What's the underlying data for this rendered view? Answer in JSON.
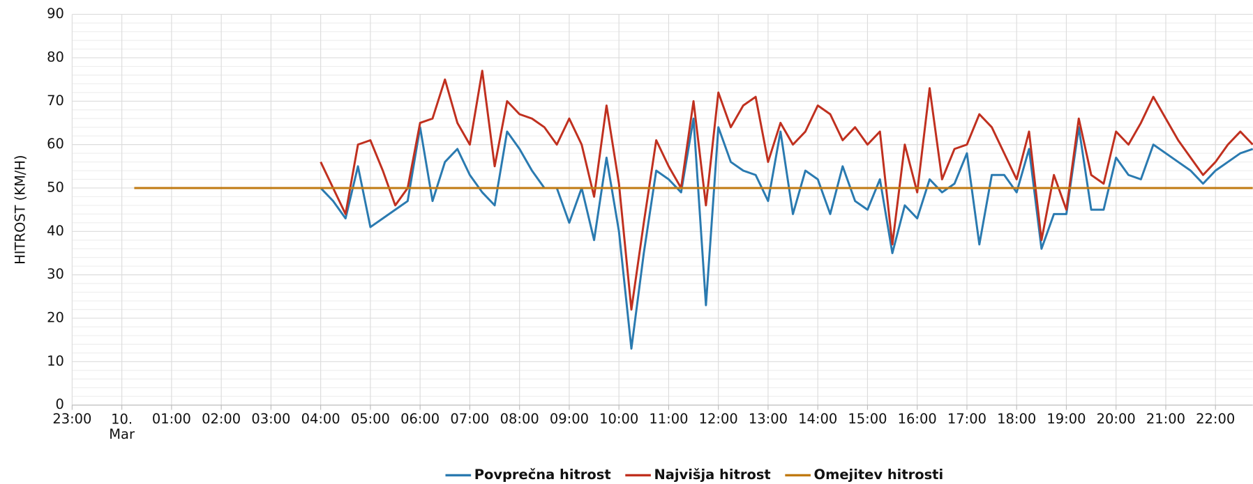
{
  "chart_data": {
    "type": "line",
    "y_label": "HITROST (KM/H)",
    "xlim": [
      -1,
      22.75
    ],
    "xticks": [
      {
        "value": -1,
        "label": "23:00"
      },
      {
        "value": 0,
        "label": "10.\nMar"
      },
      {
        "value": 1,
        "label": "01:00"
      },
      {
        "value": 2,
        "label": "02:00"
      },
      {
        "value": 3,
        "label": "03:00"
      },
      {
        "value": 4,
        "label": "04:00"
      },
      {
        "value": 5,
        "label": "05:00"
      },
      {
        "value": 6,
        "label": "06:00"
      },
      {
        "value": 7,
        "label": "07:00"
      },
      {
        "value": 8,
        "label": "08:00"
      },
      {
        "value": 9,
        "label": "09:00"
      },
      {
        "value": 10,
        "label": "10:00"
      },
      {
        "value": 11,
        "label": "11:00"
      },
      {
        "value": 12,
        "label": "12:00"
      },
      {
        "value": 13,
        "label": "13:00"
      },
      {
        "value": 14,
        "label": "14:00"
      },
      {
        "value": 15,
        "label": "15:00"
      },
      {
        "value": 16,
        "label": "16:00"
      },
      {
        "value": 17,
        "label": "17:00"
      },
      {
        "value": 18,
        "label": "18:00"
      },
      {
        "value": 19,
        "label": "19:00"
      },
      {
        "value": 20,
        "label": "20:00"
      },
      {
        "value": 21,
        "label": "21:00"
      },
      {
        "value": 22,
        "label": "22:00"
      }
    ],
    "ylim": [
      0,
      90
    ],
    "yticks": [
      0,
      10,
      20,
      30,
      40,
      50,
      60,
      70,
      80,
      90
    ],
    "grid": true,
    "series": [
      {
        "name": "Povprečna hitrost",
        "color": "#2a7ab0",
        "x": [
          4,
          4.25,
          4.5,
          4.75,
          5,
          5.25,
          5.5,
          5.75,
          6,
          6.25,
          6.5,
          6.75,
          7,
          7.25,
          7.5,
          7.75,
          8,
          8.25,
          8.5,
          8.75,
          9,
          9.25,
          9.5,
          9.75,
          10,
          10.25,
          10.5,
          10.75,
          11,
          11.25,
          11.5,
          11.75,
          12,
          12.25,
          12.5,
          12.75,
          13,
          13.25,
          13.5,
          13.75,
          14,
          14.25,
          14.5,
          14.75,
          15,
          15.25,
          15.5,
          15.75,
          16,
          16.25,
          16.5,
          16.75,
          17,
          17.25,
          17.5,
          17.75,
          18,
          18.25,
          18.5,
          18.75,
          19,
          19.25,
          19.5,
          19.75,
          20,
          20.25,
          20.5,
          20.75,
          21,
          21.25,
          21.5,
          21.75,
          22,
          22.25,
          22.5,
          22.75
        ],
        "values": [
          50,
          47,
          43,
          55,
          41,
          43,
          45,
          47,
          64,
          47,
          56,
          59,
          53,
          49,
          46,
          63,
          59,
          54,
          50,
          50,
          42,
          50,
          38,
          57,
          40,
          13,
          35,
          54,
          52,
          49,
          66,
          23,
          64,
          56,
          54,
          53,
          47,
          63,
          44,
          54,
          52,
          44,
          55,
          47,
          45,
          52,
          35,
          46,
          43,
          52,
          49,
          51,
          58,
          37,
          53,
          53,
          49,
          59,
          36,
          44,
          44,
          64,
          45,
          45,
          57,
          53,
          52,
          60,
          58,
          56,
          54,
          51,
          54,
          56,
          58,
          59
        ]
      },
      {
        "name": "Najvišja hitrost",
        "color": "#c0301f",
        "x": [
          4,
          4.25,
          4.5,
          4.75,
          5,
          5.25,
          5.5,
          5.75,
          6,
          6.25,
          6.5,
          6.75,
          7,
          7.25,
          7.5,
          7.75,
          8,
          8.25,
          8.5,
          8.75,
          9,
          9.25,
          9.5,
          9.75,
          10,
          10.25,
          10.5,
          10.75,
          11,
          11.25,
          11.5,
          11.75,
          12,
          12.25,
          12.5,
          12.75,
          13,
          13.25,
          13.5,
          13.75,
          14,
          14.25,
          14.5,
          14.75,
          15,
          15.25,
          15.5,
          15.75,
          16,
          16.25,
          16.5,
          16.75,
          17,
          17.25,
          17.5,
          17.75,
          18,
          18.25,
          18.5,
          18.75,
          19,
          19.25,
          19.5,
          19.75,
          20,
          20.25,
          20.5,
          20.75,
          21,
          21.25,
          21.5,
          21.75,
          22,
          22.25,
          22.5,
          22.75
        ],
        "values": [
          56,
          50,
          44,
          60,
          61,
          54,
          46,
          50,
          65,
          66,
          75,
          65,
          60,
          77,
          55,
          70,
          67,
          66,
          64,
          60,
          66,
          60,
          48,
          69,
          51,
          22,
          42,
          61,
          55,
          50,
          70,
          46,
          72,
          64,
          69,
          71,
          56,
          65,
          60,
          63,
          69,
          67,
          61,
          64,
          60,
          63,
          37,
          60,
          49,
          73,
          52,
          59,
          60,
          67,
          64,
          58,
          52,
          63,
          38,
          53,
          45,
          66,
          53,
          51,
          63,
          60,
          65,
          71,
          66,
          61,
          57,
          53,
          56,
          60,
          63,
          60
        ]
      },
      {
        "name": "Omejitev hitrosti",
        "color": "#c07a12",
        "x": [
          0.25,
          22.75
        ],
        "values": [
          50,
          50
        ]
      }
    ]
  }
}
